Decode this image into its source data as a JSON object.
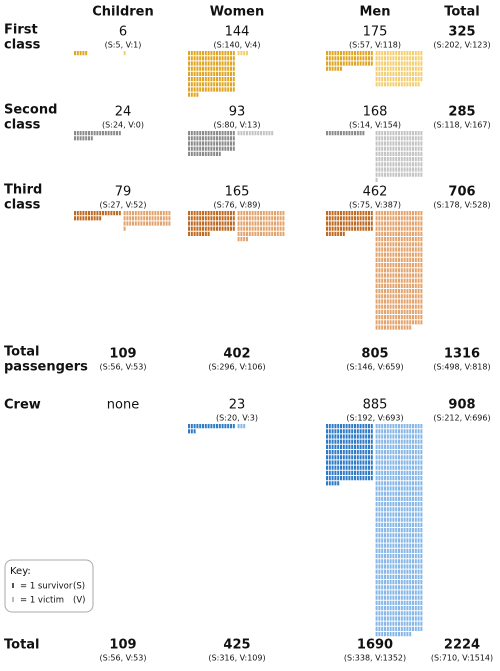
{
  "header": {
    "columns": [
      "Children",
      "Women",
      "Men",
      "Total"
    ]
  },
  "rows": [
    {
      "label": [
        "First",
        "class"
      ],
      "colors": {
        "survivor": "#e0a623",
        "victim": "#f3cf72"
      },
      "cells": [
        {
          "total": 6,
          "detail": "(S:5, V:1)",
          "survivors": 5,
          "victims": 1
        },
        {
          "total": 144,
          "detail": "(S:140, V:4)",
          "survivors": 140,
          "victims": 4
        },
        {
          "total": 175,
          "detail": "(S:57, V:118)",
          "survivors": 57,
          "victims": 118
        },
        {
          "total": 325,
          "detail": "(S:202, V:123)"
        }
      ]
    },
    {
      "label": [
        "Second",
        "class"
      ],
      "colors": {
        "survivor": "#8a8a8a",
        "victim": "#c4c4c4"
      },
      "cells": [
        {
          "total": 24,
          "detail": "(S:24, V:0)",
          "survivors": 24,
          "victims": 0
        },
        {
          "total": 93,
          "detail": "(S:80, V:13)",
          "survivors": 80,
          "victims": 13
        },
        {
          "total": 168,
          "detail": "(S:14, V:154)",
          "survivors": 14,
          "victims": 154
        },
        {
          "total": 285,
          "detail": "(S:118, V:167)"
        }
      ]
    },
    {
      "label": [
        "Third",
        "class"
      ],
      "colors": {
        "survivor": "#bf6a22",
        "victim": "#e4a36c"
      },
      "cells": [
        {
          "total": 79,
          "detail": "(S:27, V:52)",
          "survivors": 27,
          "victims": 52
        },
        {
          "total": 165,
          "detail": "(S:76, V:89)",
          "survivors": 76,
          "victims": 89
        },
        {
          "total": 462,
          "detail": "(S:75, V:387)",
          "survivors": 75,
          "victims": 387
        },
        {
          "total": 706,
          "detail": "(S:178, V:528)"
        }
      ]
    },
    {
      "label": [
        "Total",
        "passengers"
      ],
      "cells": [
        {
          "total": 109,
          "detail": "(S:56, V:53)"
        },
        {
          "total": 402,
          "detail": "(S:296, V:106)"
        },
        {
          "total": 805,
          "detail": "(S:146, V:659)"
        },
        {
          "total": 1316,
          "detail": "(S:498, V:818)"
        }
      ]
    },
    {
      "label": [
        "Crew"
      ],
      "colors": {
        "survivor": "#2f7bc8",
        "victim": "#86b7e8"
      },
      "cells": [
        {
          "total": "none"
        },
        {
          "total": 23,
          "detail": "(S:20, V:3)",
          "survivors": 20,
          "victims": 3
        },
        {
          "total": 885,
          "detail": "(S:192, V:693)",
          "survivors": 192,
          "victims": 693
        },
        {
          "total": 908,
          "detail": "(S:212, V:696)"
        }
      ]
    },
    {
      "label": [
        "Total"
      ],
      "cells": [
        {
          "total": 109,
          "detail": "(S:56, V:53)"
        },
        {
          "total": 425,
          "detail": "(S:316, V:109)"
        },
        {
          "total": 1690,
          "detail": "(S:338, V:1352)"
        },
        {
          "total": 2224,
          "detail": "(S:710, V:1514)"
        }
      ]
    }
  ],
  "key": {
    "title": "Key:",
    "survivor": "= 1 survivor",
    "survivor_code": "(S)",
    "victim": "= 1 victim",
    "victim_code": "(V)"
  }
}
